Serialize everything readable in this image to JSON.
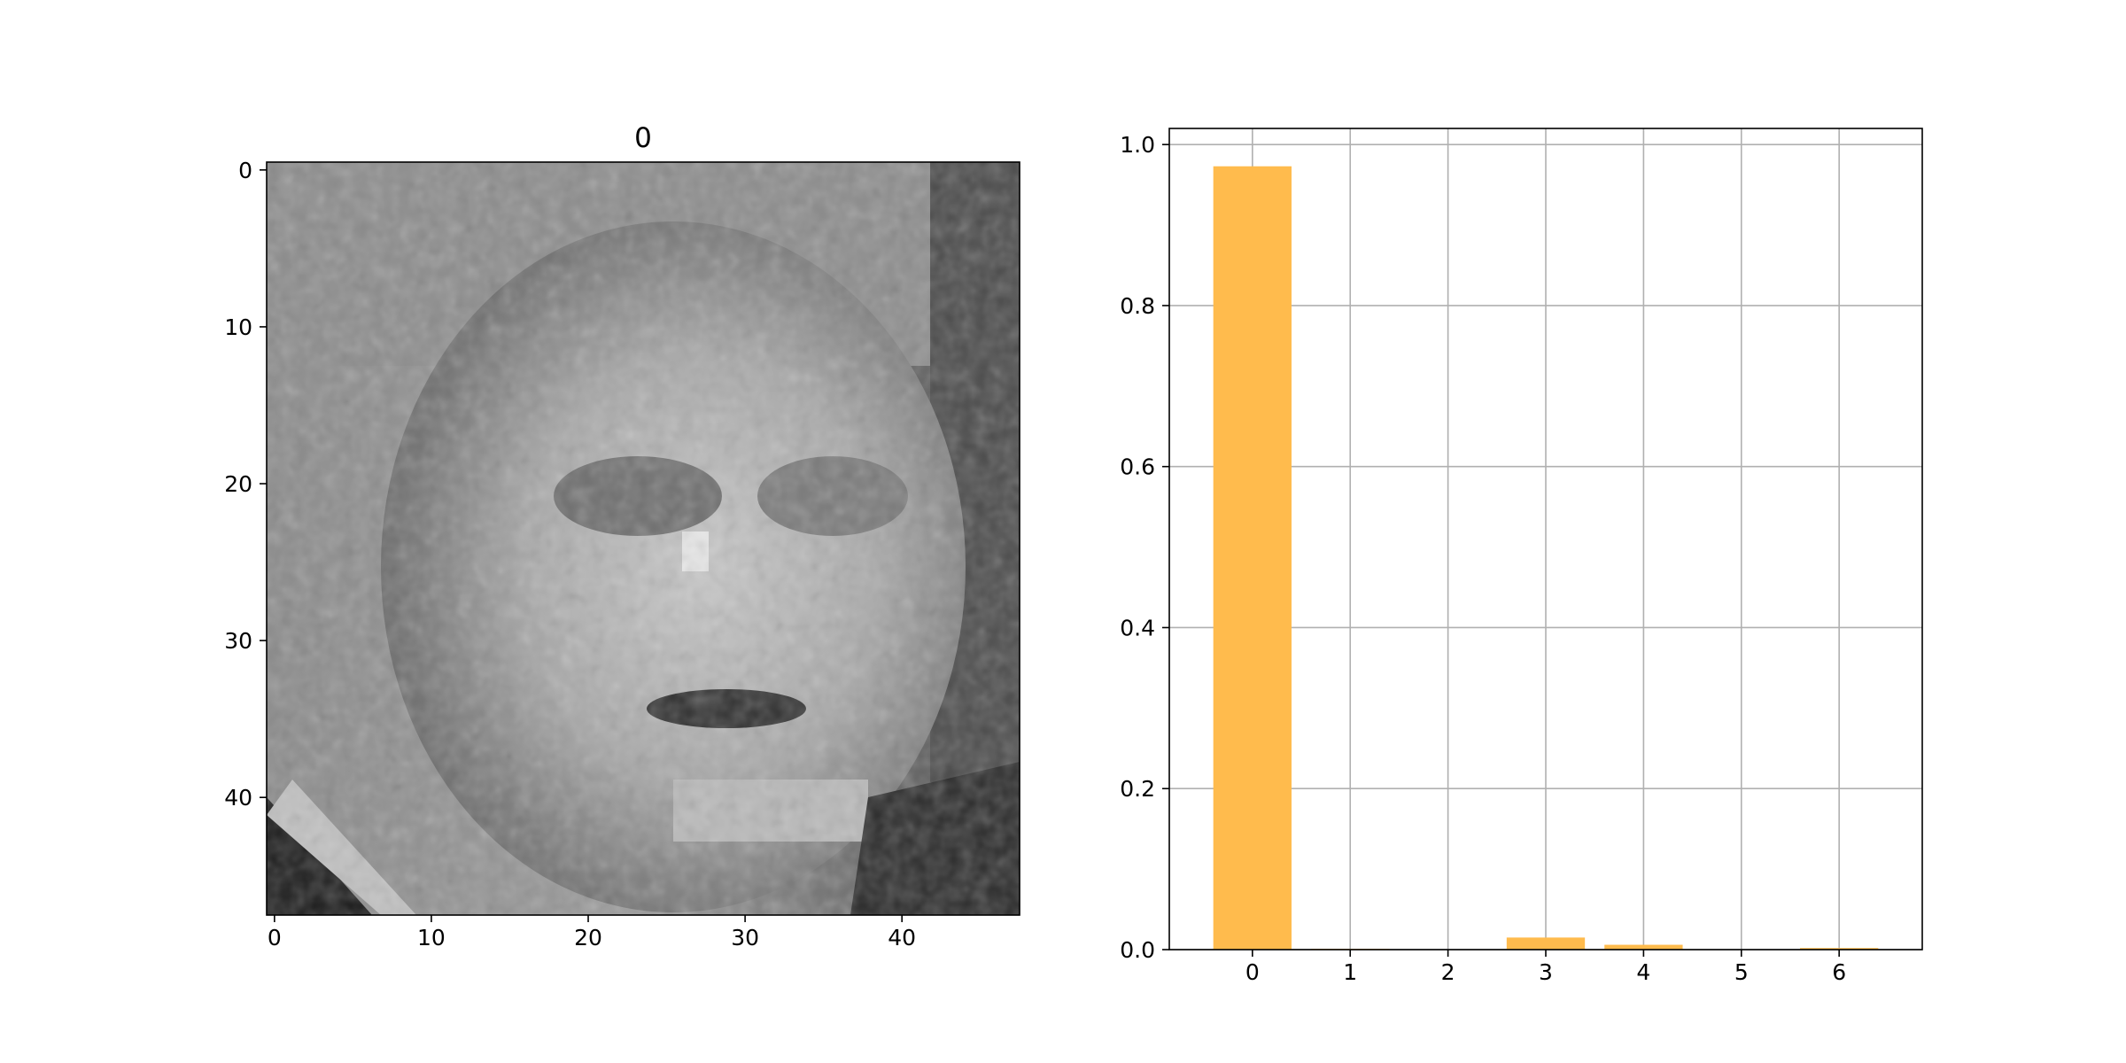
{
  "chart_data": [
    {
      "type": "image",
      "title": "0",
      "colormap": "gray",
      "image_size": [
        48,
        48
      ],
      "xticks": [
        "0",
        "10",
        "20",
        "30",
        "40"
      ],
      "yticks": [
        "0",
        "10",
        "20",
        "30",
        "40"
      ],
      "xlim": [
        -0.5,
        47.5
      ],
      "ylim": [
        47.5,
        -0.5
      ]
    },
    {
      "type": "bar",
      "categories": [
        "0",
        "1",
        "2",
        "3",
        "4",
        "5",
        "6"
      ],
      "values": [
        0.973,
        0.001,
        0.0005,
        0.015,
        0.006,
        0.0005,
        0.002
      ],
      "ylim": [
        0,
        1.0
      ],
      "yticks": [
        "0.0",
        "0.2",
        "0.4",
        "0.6",
        "0.8",
        "1.0"
      ],
      "grid": true,
      "bar_color": "#ffbb4d"
    }
  ]
}
